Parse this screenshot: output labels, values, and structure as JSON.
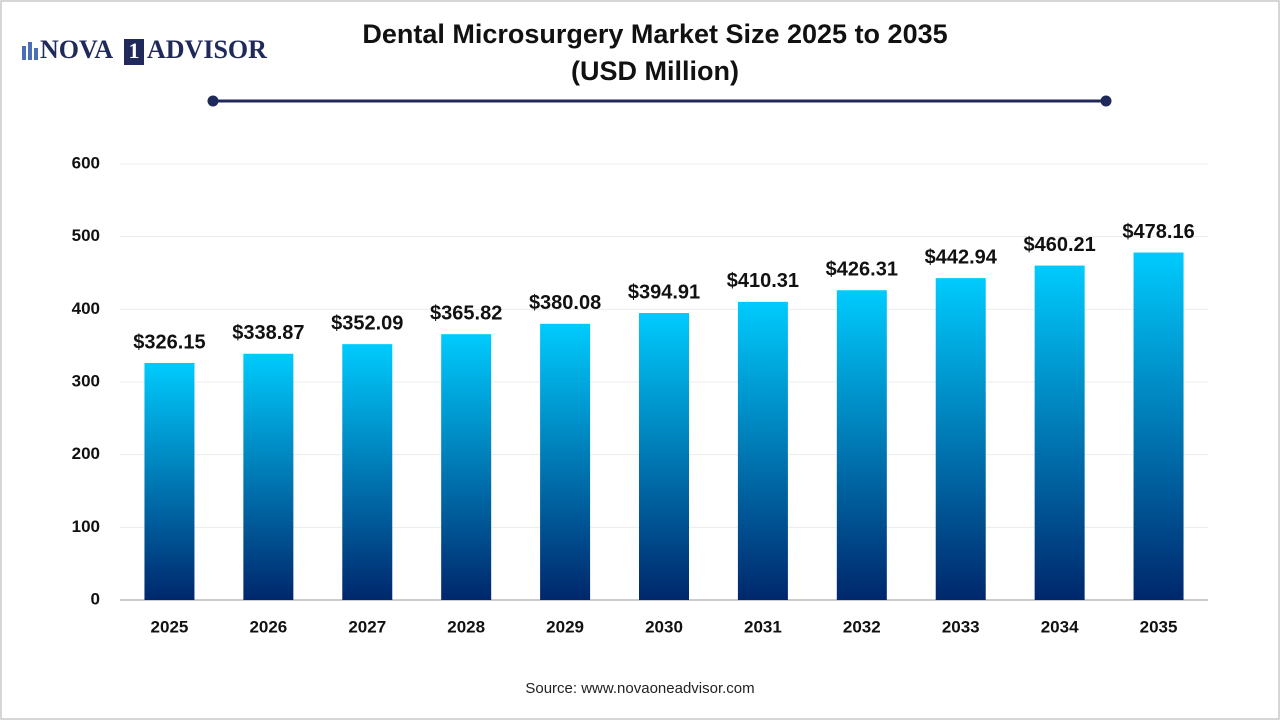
{
  "brand": {
    "left": "NOVA",
    "mark": "1",
    "right": "ADVISOR"
  },
  "chart_data": {
    "type": "bar",
    "title": "Dental Microsurgery Market Size 2025 to 2035",
    "subtitle": "(USD Million)",
    "categories": [
      "2025",
      "2026",
      "2027",
      "2028",
      "2029",
      "2030",
      "2031",
      "2032",
      "2033",
      "2034",
      "2035"
    ],
    "values": [
      326.15,
      338.87,
      352.09,
      365.82,
      380.08,
      394.91,
      410.31,
      426.31,
      442.94,
      460.21,
      478.16
    ],
    "value_labels": [
      "$326.15",
      "$338.87",
      "$352.09",
      "$365.82",
      "$380.08",
      "$394.91",
      "$410.31",
      "$426.31",
      "$442.94",
      "$460.21",
      "$478.16"
    ],
    "gradient": [
      "#00cbfd",
      "#00276c"
    ],
    "ylim": [
      0,
      600
    ],
    "yticks": [
      0,
      100,
      200,
      300,
      400,
      500,
      600
    ],
    "grid": true,
    "source": "Source: www.novaoneadvisor.com"
  }
}
